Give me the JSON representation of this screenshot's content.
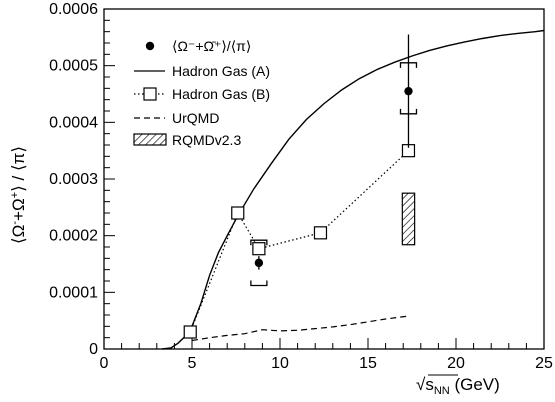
{
  "chart_data": {
    "type": "line",
    "title": "",
    "xlabel": "√s_NN (GeV)",
    "xlabel_parts": {
      "prefix": "√",
      "s": "s",
      "sub": "NN",
      "suffix": " (GeV)"
    },
    "ylabel": "⟨Ω⁻+Ω̄⁺⟩ / ⟨π⟩",
    "ylabel_parts": {
      "left": "⟨Ω",
      "sup1": "-",
      "plus": "+",
      "omega": "Ω",
      "sup2": "+",
      "right": "⟩ / ⟨π⟩"
    },
    "xlim": [
      0,
      25
    ],
    "ylim": [
      0,
      0.0006
    ],
    "x_ticks": [
      0,
      5,
      10,
      15,
      20,
      25
    ],
    "x_tick_labels": [
      "0",
      "5",
      "10",
      "15",
      "20",
      "25"
    ],
    "y_ticks": [
      0,
      0.0001,
      0.0002,
      0.0003,
      0.0004,
      0.0005,
      0.0006
    ],
    "y_tick_labels": [
      "0",
      "0.0001",
      "0.0002",
      "0.0003",
      "0.0004",
      "0.0005",
      "0.0006"
    ],
    "grid": false,
    "legend_position": "top-left",
    "series": [
      {
        "name": "⟨Ω⁻+Ω̄⁺⟩/⟨π⟩",
        "style": "data-points",
        "color": "#000000",
        "points": [
          {
            "x": 8.8,
            "y": 0.000152,
            "stat_err": 1.2e-05,
            "sys_err": [
              4e-05,
              4e-05
            ]
          },
          {
            "x": 17.3,
            "y": 0.000455,
            "stat_err": 0.0001,
            "sys_err": [
              4e-05,
              5e-05
            ]
          }
        ]
      },
      {
        "name": "Hadron Gas (A)",
        "style": "solid-line",
        "color": "#000000",
        "x": [
          3.3,
          3.8,
          4.2,
          4.6,
          5.0,
          5.5,
          6.0,
          6.5,
          7.0,
          7.6,
          8.5,
          9.5,
          10.5,
          11.5,
          12.5,
          13.5,
          14.5,
          15.5,
          16.5,
          17.5,
          18.5,
          19.5,
          20.5,
          21.5,
          22.5,
          23.5,
          24.5,
          25.0
        ],
        "y": [
          0.0,
          2e-06,
          1e-05,
          2.2e-05,
          4e-05,
          8e-05,
          0.00013,
          0.00017,
          0.0002,
          0.000235,
          0.000282,
          0.000327,
          0.00037,
          0.000405,
          0.000433,
          0.000457,
          0.000477,
          0.000493,
          0.000506,
          0.000517,
          0.000527,
          0.000535,
          0.000542,
          0.000548,
          0.000553,
          0.000557,
          0.00056,
          0.000562
        ]
      },
      {
        "name": "Hadron Gas (B)",
        "style": "dotted-squares",
        "color": "#000000",
        "x": [
          4.9,
          7.6,
          8.8,
          12.3,
          17.3
        ],
        "y": [
          3e-05,
          0.00024,
          0.000177,
          0.000205,
          0.00035
        ]
      },
      {
        "name": "UrQMD",
        "style": "dashed-line",
        "color": "#000000",
        "x": [
          5.0,
          6.0,
          7.0,
          8.0,
          9.0,
          10.0,
          11.0,
          12.0,
          13.0,
          14.0,
          15.0,
          16.0,
          17.3
        ],
        "y": [
          1.5e-05,
          2e-05,
          2.4e-05,
          2.7e-05,
          3.4e-05,
          3.2e-05,
          3.3e-05,
          3.6e-05,
          3.9e-05,
          4.3e-05,
          4.8e-05,
          5.3e-05,
          5.8e-05
        ]
      },
      {
        "name": "RQMDv2.3",
        "style": "hatched-box",
        "color": "#000000",
        "boxes": [
          {
            "x": 17.3,
            "x_halfwidth": 0.35,
            "y_low": 0.000184,
            "y_high": 0.000275
          }
        ]
      }
    ]
  }
}
